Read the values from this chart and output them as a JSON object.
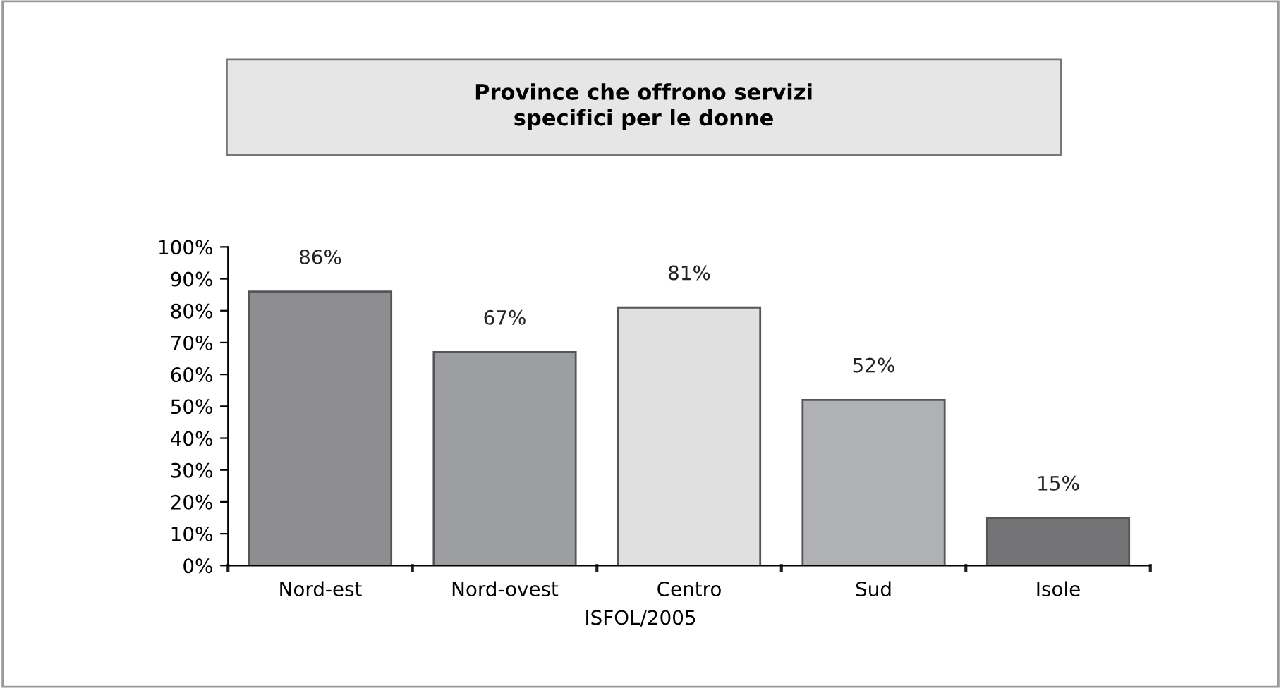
{
  "chart_data": {
    "type": "bar",
    "title": "Province che offrono servizi\nspecifici per le donne",
    "categories": [
      "Nord-est",
      "Nord-ovest",
      "Centro",
      "Sud",
      "Isole"
    ],
    "values": [
      86,
      67,
      81,
      52,
      15
    ],
    "colors": [
      "#8e8e92",
      "#9d9ea2",
      "#e0e0e1",
      "#b0b1b4",
      "#747477"
    ],
    "value_labels": [
      "86%",
      "67%",
      "81%",
      "52%",
      "15%"
    ],
    "ylim": [
      0,
      100
    ],
    "yticks": [
      {
        "value": 0,
        "label": "0%"
      },
      {
        "value": 10,
        "label": "10%"
      },
      {
        "value": 20,
        "label": "20%"
      },
      {
        "value": 30,
        "label": "30%"
      },
      {
        "value": 40,
        "label": "40%"
      },
      {
        "value": 50,
        "label": "50%"
      },
      {
        "value": 60,
        "label": "60%"
      },
      {
        "value": 70,
        "label": "70%"
      },
      {
        "value": 80,
        "label": "80%"
      },
      {
        "value": 90,
        "label": "90%"
      },
      {
        "value": 100,
        "label": "100%"
      }
    ],
    "grid": false,
    "annotations": [
      "ISFOL/2005"
    ]
  }
}
